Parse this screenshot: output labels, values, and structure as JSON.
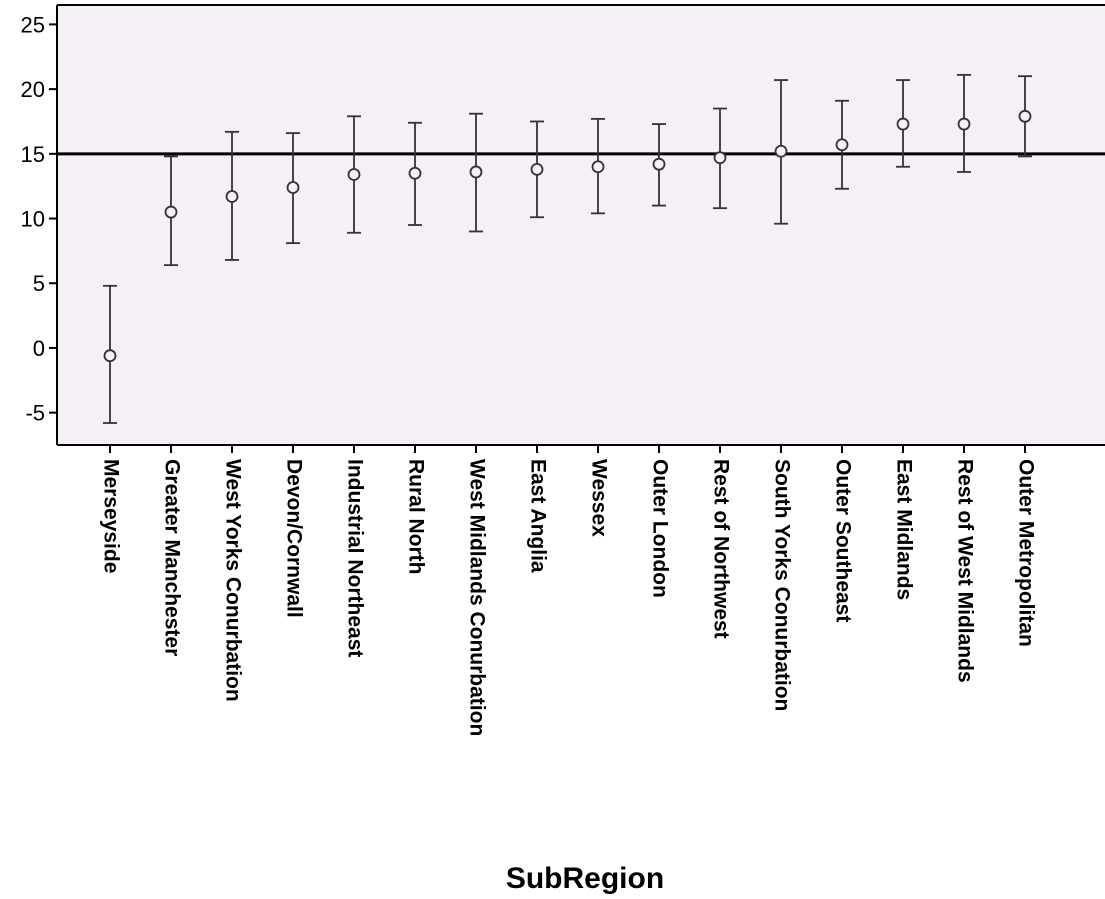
{
  "chart_data": {
    "type": "scatter",
    "subtype": "error-bar",
    "title": "",
    "xlabel": "SubRegion",
    "ylabel": "",
    "ylim": [
      -7.5,
      26.5
    ],
    "yticks": [
      -5,
      0,
      5,
      10,
      15,
      20,
      25
    ],
    "reference_line": 15,
    "grid": false,
    "colors": {
      "plot_background": "#f5eff6",
      "marker": "#333333",
      "error_bar": "#333333",
      "reference_line": "#000000"
    },
    "categories": [
      "Merseyside",
      "Greater Manchester",
      "West Yorks Conurbation",
      "Devon/Cornwall",
      "Industrial Northeast",
      "Rural North",
      "West Midlands Conurbation",
      "East Anglia",
      "Wessex",
      "Outer London",
      "Rest of Northwest",
      "South Yorks Conurbation",
      "Outer Southeast",
      "East Midlands",
      "Rest of West Midlands",
      "Outer Metropolitan"
    ],
    "series": [
      {
        "values": [
          -0.6,
          10.5,
          11.7,
          12.4,
          13.4,
          13.5,
          13.6,
          13.8,
          14.0,
          14.2,
          14.7,
          15.2,
          15.7,
          17.3,
          17.3,
          17.9
        ],
        "lower": [
          -5.8,
          6.4,
          6.8,
          8.1,
          8.9,
          9.5,
          9.0,
          10.1,
          10.4,
          11.0,
          10.8,
          9.6,
          12.3,
          14.0,
          13.6,
          14.8
        ],
        "upper": [
          4.8,
          14.8,
          16.7,
          16.6,
          17.9,
          17.4,
          18.1,
          17.5,
          17.7,
          17.3,
          18.5,
          20.7,
          19.1,
          20.7,
          21.1,
          21.0
        ]
      }
    ]
  }
}
